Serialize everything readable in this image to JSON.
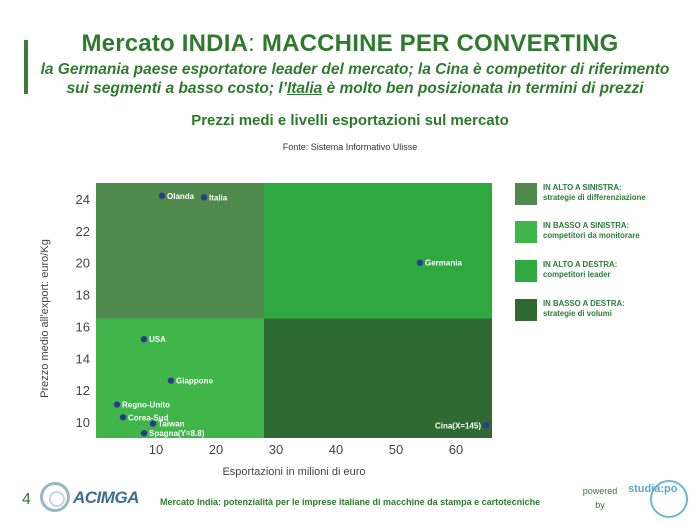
{
  "header": {
    "title_a": "Mercato INDIA",
    "title_sep": ": ",
    "title_b": "MACCHINE PER CONVERTING",
    "subtitle_1": "la Germania paese esportatore leader del mercato; la Cina è competitor di riferimento",
    "subtitle_2a": "sui segmenti a basso costo; l’",
    "subtitle_2u": "Italia",
    "subtitle_2b": " è molto ben posizionata in termini di prezzi",
    "chart_title": "Prezzi medi e livelli esportazioni sul mercato",
    "source": "Fonte: Sistema Informativo Ulisse"
  },
  "chart_data": {
    "type": "scatter",
    "title": "Prezzi medi e livelli esportazioni sul mercato",
    "xlabel": "Esportazioni in milioni di euro",
    "ylabel": "Prezzo medio all'export: euro/Kg",
    "xlim": [
      0,
      66
    ],
    "ylim": [
      9,
      25
    ],
    "xticks": [
      10,
      20,
      30,
      40,
      50,
      60
    ],
    "yticks": [
      10,
      12,
      14,
      16,
      18,
      20,
      22,
      24
    ],
    "quadrant_split": {
      "x": 28,
      "y": 16.5
    },
    "quadrant_colors": {
      "top_left": "#4f8a4c",
      "bottom_left": "#3fb54a",
      "top_right": "#2ea83f",
      "bottom_right": "#2f6a33"
    },
    "point_color": "#2a3a8c",
    "points": [
      {
        "label": "Olanda",
        "x": 11,
        "y": 24.2
      },
      {
        "label": "Italia",
        "x": 18,
        "y": 24.1
      },
      {
        "label": "Germania",
        "x": 54,
        "y": 20
      },
      {
        "label": "USA",
        "x": 8,
        "y": 15.2
      },
      {
        "label": "Giappone",
        "x": 12.5,
        "y": 12.6
      },
      {
        "label": "Regno-Unito",
        "x": 3.5,
        "y": 11.1
      },
      {
        "label": "Corea-Sud",
        "x": 4.5,
        "y": 10.3
      },
      {
        "label": "Taiwan",
        "x": 9.5,
        "y": 9.9
      },
      {
        "label": "Spagna(Y=8.8)",
        "x": 8,
        "y": 9.3
      },
      {
        "label": "Cina(X=145)",
        "x": 65,
        "y": 9.8
      }
    ]
  },
  "legend": [
    {
      "title": "IN ALTO A SINISTRA:",
      "desc": "strategie di differenziazione",
      "color": "#4f8a4c"
    },
    {
      "title": "IN BASSO A SINISTRA:",
      "desc": "competitori da monitorare",
      "color": "#3fb54a"
    },
    {
      "title": "IN ALTO A DESTRA:",
      "desc": "competitori leader",
      "color": "#2ea83f"
    },
    {
      "title": "IN BASSO A DESTRA:",
      "desc": "strategie di volumi",
      "color": "#2f6a33"
    }
  ],
  "footer": {
    "page_number": "4",
    "logo": "ACIMGA",
    "text": "Mercato India: potenzialità per le imprese italiane di macchine da stampa e cartotecniche",
    "powered_1": "powered",
    "powered_2": "by",
    "studia_logo": "studia:po"
  }
}
